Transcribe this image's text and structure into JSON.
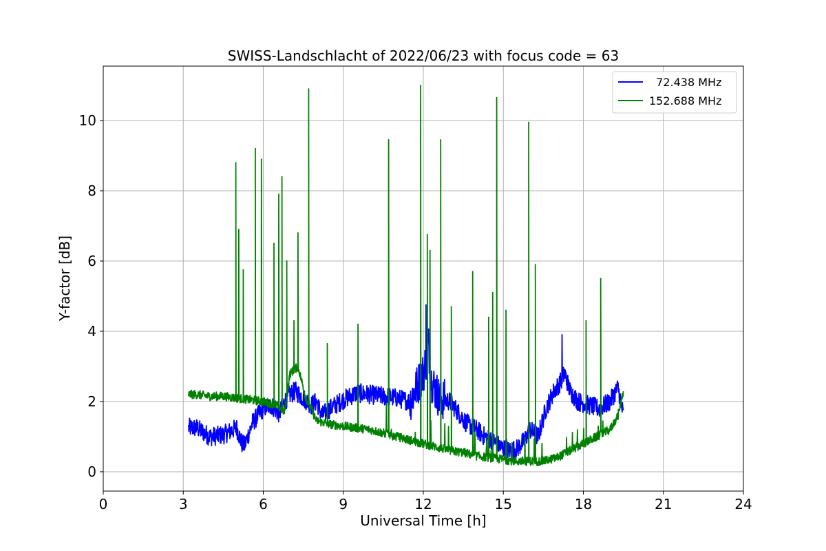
{
  "chart_data": {
    "type": "line",
    "title": "SWISS-Landschlacht of 2022/06/23 with focus code = 63",
    "xlabel": "Universal Time [h]",
    "ylabel": "Y-factor [dB]",
    "xlim": [
      0,
      24
    ],
    "ylim": [
      -0.55,
      11.55
    ],
    "xticks": [
      0,
      3,
      6,
      9,
      12,
      15,
      18,
      21,
      24
    ],
    "yticks": [
      0,
      2,
      4,
      6,
      8,
      10
    ],
    "grid": true,
    "legend_position": "top-right",
    "series": [
      {
        "name": "  72.438 MHz",
        "color": "#0000ff",
        "x": [
          3.2,
          3.5,
          4.0,
          4.5,
          5.0,
          5.2,
          5.3,
          5.6,
          6.0,
          6.3,
          6.6,
          6.8,
          7.0,
          7.2,
          7.5,
          7.8,
          8.0,
          8.2,
          8.5,
          9.0,
          9.5,
          10.0,
          10.5,
          11.0,
          11.5,
          11.8,
          12.0,
          12.1,
          12.2,
          12.3,
          12.6,
          13.0,
          13.3,
          13.6,
          14.0,
          14.3,
          14.6,
          14.9,
          15.2,
          15.5,
          15.8,
          16.0,
          16.3,
          16.6,
          16.9,
          17.1,
          17.3,
          17.5,
          17.8,
          18.2,
          18.6,
          19.0,
          19.3,
          19.5
        ],
        "y": [
          1.25,
          1.25,
          1.0,
          1.05,
          1.25,
          0.8,
          0.75,
          1.4,
          1.8,
          1.9,
          1.65,
          2.0,
          2.2,
          2.3,
          2.1,
          1.9,
          2.0,
          1.6,
          1.8,
          2.05,
          2.25,
          2.2,
          2.15,
          2.1,
          2.0,
          2.5,
          2.8,
          3.2,
          3.6,
          2.6,
          2.1,
          2.0,
          1.7,
          1.4,
          1.2,
          1.0,
          0.9,
          0.7,
          0.6,
          0.65,
          0.9,
          1.2,
          1.0,
          1.8,
          2.3,
          2.5,
          2.8,
          2.3,
          2.0,
          1.9,
          1.8,
          2.0,
          2.4,
          1.6
        ]
      },
      {
        "name": "152.688 MHz",
        "color": "#008000",
        "x": [
          3.2,
          3.5,
          4.0,
          4.5,
          5.0,
          5.5,
          6.0,
          6.5,
          6.8,
          7.0,
          7.3,
          7.6,
          8.0,
          8.5,
          9.0,
          9.5,
          10.0,
          10.5,
          11.0,
          11.5,
          12.0,
          12.5,
          13.0,
          13.5,
          14.0,
          14.5,
          15.0,
          15.5,
          16.0,
          16.5,
          17.0,
          17.5,
          18.0,
          18.5,
          19.0,
          19.3,
          19.5
        ],
        "y": [
          2.2,
          2.2,
          2.15,
          2.15,
          2.1,
          2.05,
          2.0,
          1.9,
          1.7,
          2.8,
          3.0,
          2.1,
          1.45,
          1.35,
          1.3,
          1.25,
          1.2,
          1.1,
          1.0,
          0.9,
          0.8,
          0.7,
          0.6,
          0.55,
          0.45,
          0.4,
          0.35,
          0.3,
          0.3,
          0.3,
          0.4,
          0.6,
          0.8,
          1.0,
          1.2,
          1.6,
          2.3
        ]
      }
    ],
    "spikes": [
      {
        "series": 1,
        "x": 4.97,
        "y": 8.8
      },
      {
        "series": 1,
        "x": 5.08,
        "y": 6.9
      },
      {
        "series": 1,
        "x": 5.25,
        "y": 5.75
      },
      {
        "series": 1,
        "x": 5.7,
        "y": 9.2
      },
      {
        "series": 1,
        "x": 5.93,
        "y": 8.9
      },
      {
        "series": 1,
        "x": 6.4,
        "y": 6.5
      },
      {
        "series": 1,
        "x": 6.58,
        "y": 7.9
      },
      {
        "series": 1,
        "x": 6.7,
        "y": 8.4
      },
      {
        "series": 1,
        "x": 6.88,
        "y": 6.0
      },
      {
        "series": 1,
        "x": 7.15,
        "y": 4.3
      },
      {
        "series": 1,
        "x": 7.3,
        "y": 6.8
      },
      {
        "series": 1,
        "x": 7.7,
        "y": 10.9
      },
      {
        "series": 1,
        "x": 8.4,
        "y": 3.65
      },
      {
        "series": 1,
        "x": 9.55,
        "y": 4.2
      },
      {
        "series": 1,
        "x": 10.7,
        "y": 9.45
      },
      {
        "series": 1,
        "x": 11.9,
        "y": 11.0
      },
      {
        "series": 1,
        "x": 12.15,
        "y": 6.75
      },
      {
        "series": 1,
        "x": 12.25,
        "y": 6.3
      },
      {
        "series": 1,
        "x": 12.65,
        "y": 9.45
      },
      {
        "series": 1,
        "x": 13.05,
        "y": 4.7
      },
      {
        "series": 1,
        "x": 13.85,
        "y": 5.7
      },
      {
        "series": 1,
        "x": 14.45,
        "y": 4.4
      },
      {
        "series": 1,
        "x": 14.6,
        "y": 5.1
      },
      {
        "series": 1,
        "x": 14.75,
        "y": 10.65
      },
      {
        "series": 1,
        "x": 15.1,
        "y": 4.6
      },
      {
        "series": 1,
        "x": 15.95,
        "y": 9.95
      },
      {
        "series": 1,
        "x": 16.2,
        "y": 5.9
      },
      {
        "series": 1,
        "x": 18.1,
        "y": 4.3
      },
      {
        "series": 1,
        "x": 18.65,
        "y": 5.5
      },
      {
        "series": 0,
        "x": 12.1,
        "y": 4.75
      },
      {
        "series": 0,
        "x": 17.2,
        "y": 3.9
      }
    ]
  }
}
